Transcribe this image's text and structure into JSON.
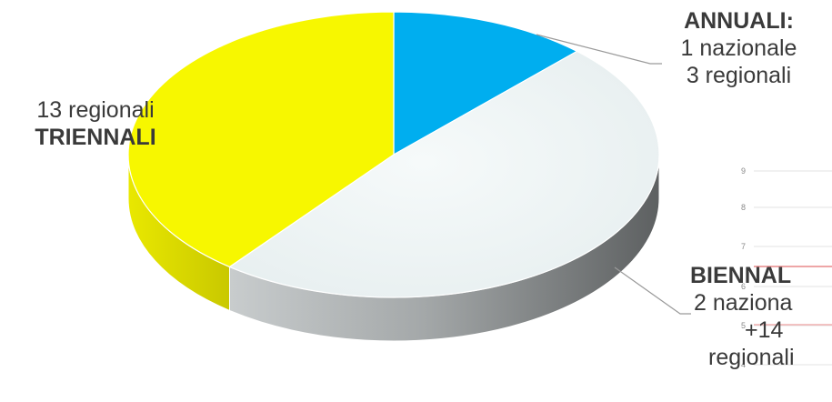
{
  "chart_data": {
    "type": "pie",
    "style": "3d",
    "categories": [
      "ANNUALI",
      "BIENNALI",
      "TRIENNALI"
    ],
    "values": [
      4,
      16,
      13
    ],
    "colors": [
      "#00aeef",
      "#eef4f5",
      "#f7f700"
    ],
    "side_colors": [
      "#0088bb",
      "#6f7272",
      "#d9d800"
    ],
    "labels": {
      "annuali": {
        "title": "ANNUALI:",
        "line1": "1 nazionale",
        "line2": "3 regionali"
      },
      "triennali": {
        "line1": "13 regionali",
        "title": "TRIENNALI"
      },
      "biennali": {
        "title": "BIENNAL",
        "line1": "2 naziona",
        "line2": "+14",
        "line3": "regionali"
      }
    }
  },
  "background_chart": {
    "y_ticks": [
      "9",
      "8",
      "7",
      "6",
      "5",
      "4"
    ]
  }
}
